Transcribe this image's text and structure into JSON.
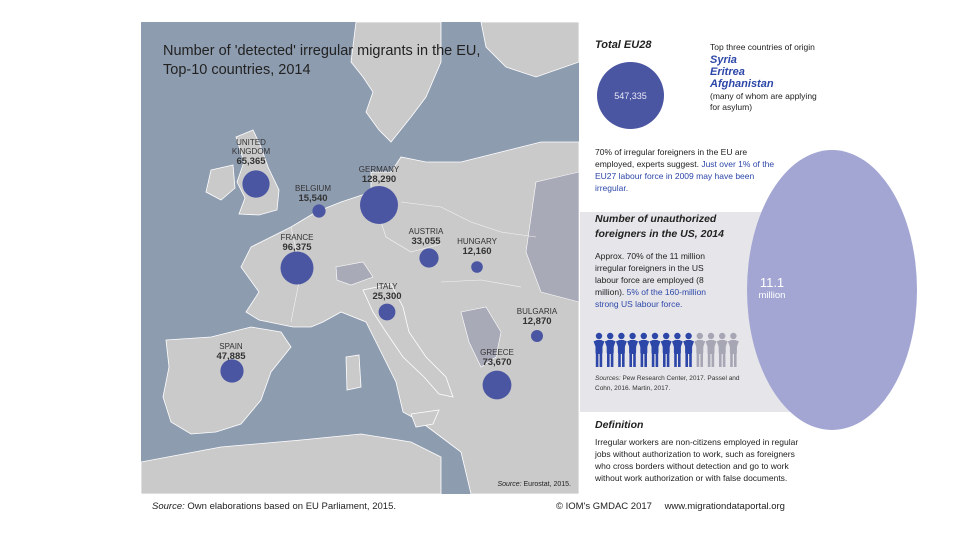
{
  "map": {
    "title_line1": "Number of 'detected' irregular migrants in the EU,",
    "title_line2": "Top-10 countries, 2014",
    "source_label": "Source:",
    "source_text": "Eurostat, 2015.",
    "countries": [
      {
        "name": "UNITED KINGDOM",
        "name_line1": "UNITED",
        "name_line2": "KINGDOM",
        "value": 65365,
        "value_label": "65,365"
      },
      {
        "name": "BELGIUM",
        "value": 15540,
        "value_label": "15,540"
      },
      {
        "name": "GERMANY",
        "value": 128290,
        "value_label": "128,290"
      },
      {
        "name": "FRANCE",
        "value": 96375,
        "value_label": "96,375"
      },
      {
        "name": "AUSTRIA",
        "value": 33055,
        "value_label": "33,055"
      },
      {
        "name": "HUNGARY",
        "value": 12160,
        "value_label": "12,160"
      },
      {
        "name": "ITALY",
        "value": 25300,
        "value_label": "25,300"
      },
      {
        "name": "BULGARIA",
        "value": 12870,
        "value_label": "12,870"
      },
      {
        "name": "SPAIN",
        "value": 47885,
        "value_label": "47,885"
      },
      {
        "name": "GREECE",
        "value": 73670,
        "value_label": "73,670"
      }
    ],
    "colors": {
      "sea": "#8e9cb0",
      "land": "#cacaca",
      "bubble": "#4b56a3",
      "border": "#ffffff"
    }
  },
  "total": {
    "title": "Total EU28",
    "value_label": "547,335",
    "origin_intro": "Top three countries of origin",
    "origins": [
      "Syria",
      "Eritrea",
      "Afghanistan"
    ],
    "origin_note": "(many of whom are applying for asylum)"
  },
  "eu_text": {
    "plain": "70% of irregular foreigners in the EU are employed, experts suggest.",
    "highlight": "Just over 1% of the EU27 labour force in 2009 may have been irregular."
  },
  "us": {
    "title": "Number of unauthorized foreigners in the US, 2014",
    "plain": "Approx. 70% of the 11 million irregular foreigners in the US labour force are employed (8 million).",
    "highlight": "5% of the 160-million strong US labour force.",
    "circle_value": "11.1",
    "circle_unit": "million",
    "workers_highlighted": 9,
    "workers_total": 13,
    "sources_label": "Sources:",
    "sources_text": "Pew Research Center, 2017. Passel and Cohn, 2016. Martin, 2017."
  },
  "definition": {
    "title": "Definition",
    "text": "Irregular workers are non-citizens employed in regular jobs without authorization to work, such as foreigners who cross borders without detection and go to work without work authorization or with false documents."
  },
  "footer": {
    "source_label": "Source:",
    "source_text": "Own elaborations based on EU Parliament, 2015.",
    "copyright": "© IOM's GMDAC 2017",
    "url": "www.migrationdataportal.org"
  },
  "colors": {
    "accent": "#2d47a8",
    "bubble": "#4b56a3",
    "us_circle": "#a3a6d3",
    "us_box": "#e6e6ea"
  }
}
